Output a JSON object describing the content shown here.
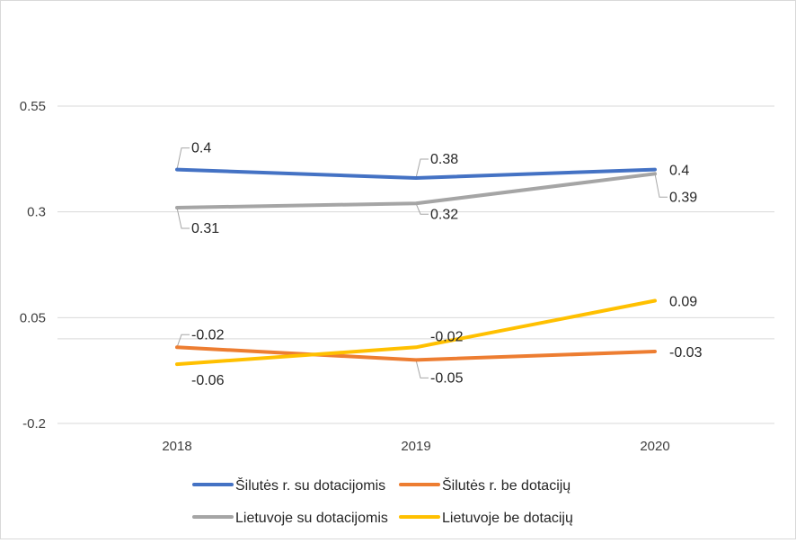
{
  "chart_data": {
    "type": "line",
    "title": "",
    "xlabel": "",
    "ylabel": "",
    "categories": [
      "2018",
      "2019",
      "2020"
    ],
    "y_ticks": [
      "0.55",
      "0.3",
      "0.05",
      "-0.2"
    ],
    "ylim": [
      -0.2,
      0.55
    ],
    "grid": true,
    "legend_position": "bottom",
    "series": [
      {
        "name": "Šilutės r. su dotacijomis",
        "color": "#4472c4",
        "values": [
          0.4,
          0.38,
          0.4
        ],
        "labels": [
          "0.4",
          "0.38",
          "0.4"
        ]
      },
      {
        "name": "Šilutės r. be dotacijų",
        "color": "#ed7d31",
        "values": [
          -0.02,
          -0.05,
          -0.03
        ],
        "labels": [
          "-0.02",
          "-0.05",
          "-0.03"
        ]
      },
      {
        "name": "Lietuvoje su dotacijomis",
        "color": "#a5a5a5",
        "values": [
          0.31,
          0.32,
          0.39
        ],
        "labels": [
          "0.31",
          "0.32",
          "0.39"
        ]
      },
      {
        "name": "Lietuvoje be dotacijų",
        "color": "#ffc000",
        "values": [
          -0.06,
          -0.02,
          0.09
        ],
        "labels": [
          "-0.06",
          "-0.02",
          "0.09"
        ]
      }
    ]
  }
}
